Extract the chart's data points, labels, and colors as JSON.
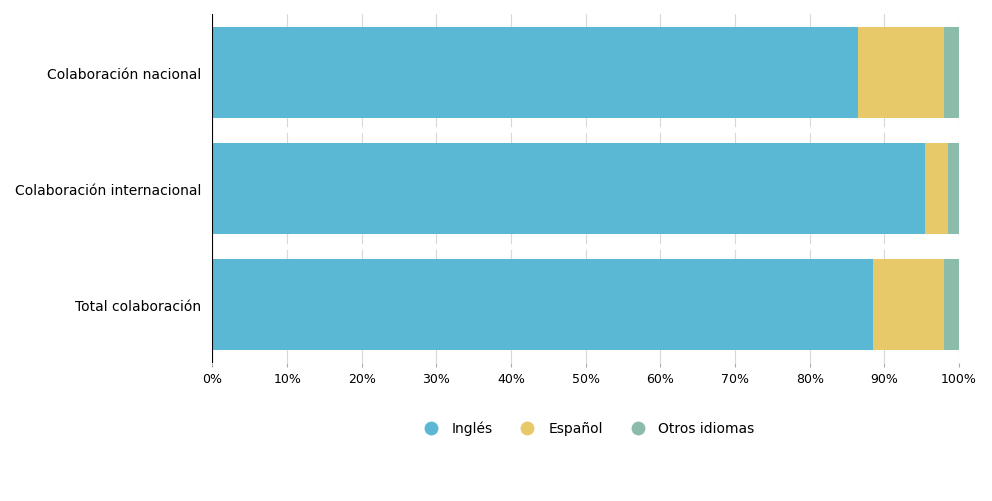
{
  "categories": [
    "Colaboración nacional",
    "Colaboración internacional",
    "Total colaboración"
  ],
  "series": {
    "Inglés": [
      86.5,
      95.5,
      88.5
    ],
    "Español": [
      11.5,
      3.0,
      9.5
    ],
    "Otros idiomas": [
      2.0,
      1.5,
      2.0
    ]
  },
  "colors": {
    "Inglés": "#5BB8D4",
    "Español": "#E8C96A",
    "Otros idiomas": "#8BBCAA"
  },
  "bar_height": 0.78,
  "xlim": [
    0,
    100
  ],
  "xticks": [
    0,
    10,
    20,
    30,
    40,
    50,
    60,
    70,
    80,
    90,
    100
  ],
  "xtick_labels": [
    "0%",
    "10%",
    "20%",
    "30%",
    "40%",
    "50%",
    "60%",
    "70%",
    "80%",
    "90%",
    "100%"
  ],
  "background_color": "#ffffff",
  "grid_color": "#d8d8d8",
  "font_size_labels": 10,
  "font_size_ticks": 9,
  "legend_fontsize": 10
}
